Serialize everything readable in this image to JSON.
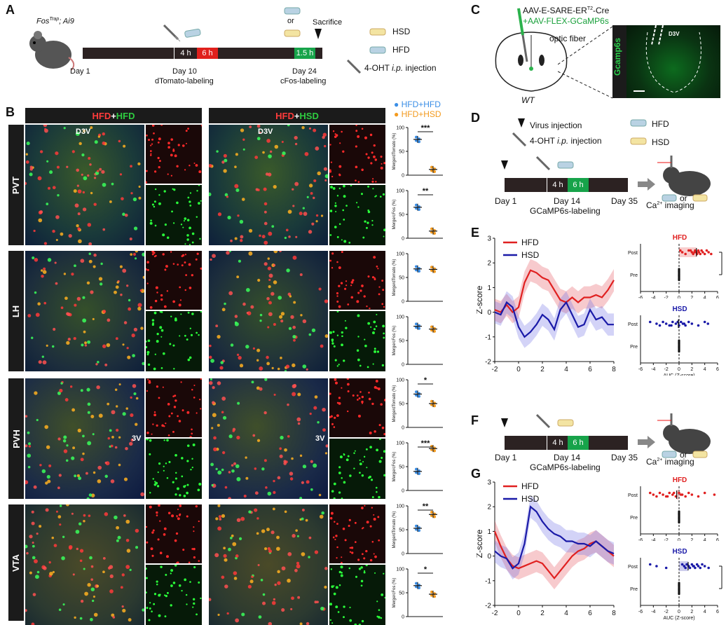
{
  "panels": {
    "A": "A",
    "B": "B",
    "C": "C",
    "D": "D",
    "E": "E",
    "F": "F",
    "G": "G"
  },
  "colors": {
    "hfd": "#e02020",
    "hsd": "#1a1aa8",
    "blue_dot": "#3a8ee6",
    "orange_dot": "#f39a1e",
    "green_box": "#17a34a",
    "red_box": "#e0201c",
    "timeline": "#2c2222"
  },
  "panelA": {
    "mouse_genotype": "Fos",
    "mouse_sup": "Trap",
    "mouse_rest": "; Ai9",
    "box_4h": "4 h",
    "box_6h": "6 h",
    "box_15h": "1.5 h",
    "day1": "Day 1",
    "day10": "Day 10",
    "day10_sub": "dTomato-labeling",
    "day24": "Day 24",
    "day24_sub": "cFos-labeling",
    "or": "or",
    "sacrifice": "Sacrifice",
    "legend_hsd": "HSD",
    "legend_hfd": "HFD",
    "legend_ohta": "4-OHT",
    "legend_ohtb": "i.p.",
    "legend_ohtc": "injection"
  },
  "panelB": {
    "header_left_a": "HFD",
    "header_left_plus": "+",
    "header_left_b": "HFD",
    "header_right_a": "HFD",
    "header_right_plus": "+",
    "header_right_b": "HSD",
    "legend_blue": "HFD+HFD",
    "legend_orange": "HFD+HSD",
    "rows": [
      "PVT",
      "LH",
      "PVH",
      "VTA"
    ],
    "d3v": "D3V",
    "v3": "3V",
    "ylab_tom": "Merge/dTomato (%)",
    "ylab_cfos": "Merge/cFos (%)",
    "ticks": [
      "100",
      "50",
      "0"
    ],
    "sig": [
      "***",
      "**",
      "",
      "",
      "*",
      "***",
      "**",
      "*"
    ],
    "stats_data": [
      {
        "row": "PVT",
        "measure": "Merge/dTomato",
        "hfd_hfd": 75,
        "hfd_hsd": 12
      },
      {
        "row": "PVT",
        "measure": "Merge/cFos",
        "hfd_hfd": 65,
        "hfd_hsd": 15
      },
      {
        "row": "LH",
        "measure": "Merge/dTomato",
        "hfd_hfd": 68,
        "hfd_hsd": 67
      },
      {
        "row": "LH",
        "measure": "Merge/cFos",
        "hfd_hfd": 80,
        "hfd_hsd": 74
      },
      {
        "row": "PVH",
        "measure": "Merge/dTomato",
        "hfd_hfd": 70,
        "hfd_hsd": 50
      },
      {
        "row": "PVH",
        "measure": "Merge/cFos",
        "hfd_hfd": 40,
        "hfd_hsd": 88
      },
      {
        "row": "VTA",
        "measure": "Merge/dTomato",
        "hfd_hfd": 53,
        "hfd_hsd": 82
      },
      {
        "row": "VTA",
        "measure": "Merge/cFos",
        "hfd_hfd": 65,
        "hfd_hsd": 47
      }
    ]
  },
  "panelC": {
    "virus1_a": "AAV-E-SARE-ER",
    "virus1_sup": "T2",
    "virus1_b": "-Cre",
    "virus2": "+AAV-FLEX-GCaMP6s",
    "fiber": "optic fiber",
    "wt": "WT",
    "gcamp": "Gcamp6s",
    "d3v": "D3V"
  },
  "panelD": {
    "virus_inj": "Virus injection",
    "oht_a": "4-OHT",
    "oht_b": "i.p.",
    "oht_c": "injection",
    "hfd": "HFD",
    "hsd": "HSD",
    "box4": "4 h",
    "box6": "6 h",
    "day1": "Day 1",
    "day14": "Day 14",
    "day35": "Day 35",
    "sub": "GCaMP6s-labeling",
    "ca_a": "Ca",
    "ca_sup": "2+",
    "ca_b": " imaging",
    "or": "or"
  },
  "panelF": {
    "box4": "4 h",
    "box6": "6 h",
    "day1": "Day 1",
    "day14": "Day 14",
    "day35": "Day 35",
    "sub": "GCaMP6s-labeling",
    "ca_a": "Ca",
    "ca_sup": "2+",
    "ca_b": " imaging",
    "or": "or"
  },
  "chart_data": [
    {
      "type": "line",
      "id": "E-trace",
      "x": [
        -2,
        -1.5,
        -1,
        -0.5,
        0,
        0.5,
        1,
        1.5,
        2,
        2.5,
        3,
        3.5,
        4,
        4.5,
        5,
        5.5,
        6,
        6.5,
        7,
        7.5,
        8
      ],
      "series": [
        {
          "name": "HFD",
          "values": [
            0.1,
            0.0,
            0.3,
            0.0,
            0.2,
            1.2,
            1.7,
            1.6,
            1.4,
            1.3,
            0.9,
            0.5,
            0.4,
            0.6,
            0.4,
            0.6,
            0.6,
            0.7,
            0.6,
            0.9,
            1.3
          ]
        },
        {
          "name": "HSD",
          "values": [
            0.0,
            -0.1,
            0.4,
            0.2,
            -0.6,
            -1.0,
            -0.8,
            -0.5,
            -0.1,
            -0.3,
            -0.7,
            0.1,
            0.4,
            -0.1,
            -0.6,
            -0.5,
            0.1,
            -0.3,
            -0.2,
            -0.5,
            -0.5
          ]
        }
      ],
      "xlim": [
        -2,
        8
      ],
      "ylim": [
        -2,
        3
      ],
      "xticks": [
        "-2",
        "0",
        "2",
        "4",
        "6",
        "8"
      ],
      "yticks": [
        "3",
        "2",
        "1",
        "0",
        "-1",
        "-2"
      ],
      "ylabel": "Z-score",
      "legend": "top-left"
    },
    {
      "type": "scatter",
      "id": "E-auc-hfd",
      "title": "HFD",
      "categories": [
        "Post",
        "Pre"
      ],
      "post_values": [
        0.2,
        0.5,
        1.0,
        1.5,
        2.0,
        2.2,
        2.5,
        2.7,
        2.8,
        3.0,
        3.1,
        3.3,
        3.5,
        3.7,
        4.0,
        4.3,
        4.6,
        5.0,
        1.8,
        2.4
      ],
      "xlim": [
        -6,
        6
      ],
      "xticks": [
        "-6",
        "-4",
        "-2",
        "0",
        "2",
        "4",
        "6"
      ],
      "significance": "****"
    },
    {
      "type": "scatter",
      "id": "E-auc-hsd",
      "title": "HSD",
      "categories": [
        "Post",
        "Pre"
      ],
      "post_values": [
        -4.5,
        -3.5,
        -3.0,
        -2.5,
        -2.0,
        -1.5,
        -1.0,
        -0.5,
        0.0,
        0.3,
        0.6,
        1.0,
        1.5,
        2.0,
        3.0,
        4.0,
        4.5,
        -1.2,
        -0.2,
        0.8
      ],
      "xlim": [
        -6,
        6
      ],
      "xticks": [
        "-6",
        "-4",
        "-2",
        "0",
        "2",
        "4",
        "6"
      ],
      "xlabel": "AUC (Z-score)"
    },
    {
      "type": "line",
      "id": "G-trace",
      "x": [
        -2,
        -1.5,
        -1,
        -0.5,
        0,
        0.5,
        1,
        1.5,
        2,
        2.5,
        3,
        3.5,
        4,
        4.5,
        5,
        5.5,
        6,
        6.5,
        7,
        7.5,
        8
      ],
      "series": [
        {
          "name": "HFD",
          "values": [
            1.0,
            0.4,
            -0.1,
            -0.4,
            -0.5,
            -0.4,
            -0.3,
            -0.2,
            -0.3,
            -0.6,
            -0.9,
            -0.6,
            -0.3,
            0.0,
            0.2,
            0.3,
            0.5,
            0.6,
            0.4,
            0.2,
            0.0
          ]
        },
        {
          "name": "HSD",
          "values": [
            0.2,
            0.0,
            -0.1,
            -0.5,
            -0.3,
            0.5,
            2.0,
            1.8,
            1.4,
            1.1,
            0.9,
            0.8,
            0.6,
            0.6,
            0.5,
            0.5,
            0.4,
            0.6,
            0.4,
            0.2,
            0.1
          ]
        }
      ],
      "xlim": [
        -2,
        8
      ],
      "ylim": [
        -2,
        3
      ],
      "xticks": [
        "-2",
        "0",
        "2",
        "4",
        "6",
        "8"
      ],
      "yticks": [
        "3",
        "2",
        "1",
        "0",
        "-1",
        "-2"
      ],
      "ylabel": "Z-score",
      "legend": "top-left"
    },
    {
      "type": "scatter",
      "id": "G-auc-hfd",
      "title": "HFD",
      "categories": [
        "Post",
        "Pre"
      ],
      "post_values": [
        -4.5,
        -4.0,
        -3.5,
        -3.0,
        -2.5,
        -2.0,
        -1.5,
        -1.0,
        -0.5,
        0.0,
        0.5,
        1.0,
        1.5,
        2.0,
        3.0,
        4.0,
        5.5,
        -1.8,
        -0.8,
        0.3
      ],
      "xlim": [
        -6,
        6
      ],
      "xticks": [
        "-6",
        "-4",
        "-2",
        "0",
        "2",
        "4",
        "6"
      ]
    },
    {
      "type": "scatter",
      "id": "G-auc-hsd",
      "title": "HSD",
      "categories": [
        "Post",
        "Pre"
      ],
      "post_values": [
        -4.5,
        -3.5,
        -2.0,
        0.5,
        0.8,
        1.0,
        1.3,
        1.5,
        1.7,
        2.0,
        2.2,
        2.5,
        2.8,
        3.0,
        3.3,
        3.6,
        4.0,
        4.6,
        1.2,
        2.3
      ],
      "xlim": [
        -6,
        6
      ],
      "xticks": [
        "-6",
        "-4",
        "-2",
        "0",
        "2",
        "4",
        "6"
      ],
      "xlabel": "AUC (Z-score)",
      "significance": "****"
    }
  ]
}
